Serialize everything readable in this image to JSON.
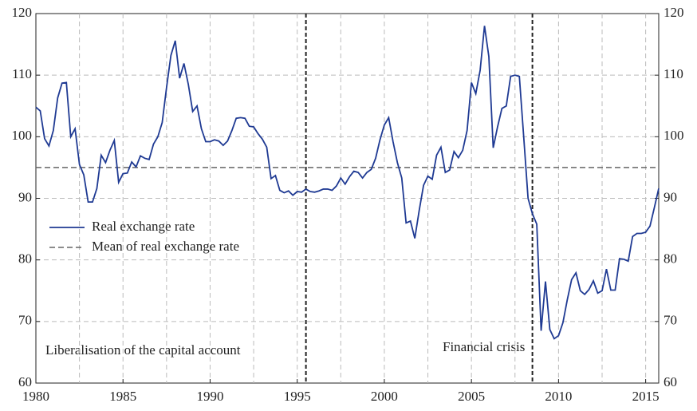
{
  "chart_data": {
    "type": "line",
    "annotations": [
      "Liberalisation of the capital account",
      "Financial crisis"
    ],
    "x": [
      1980,
      1980.25,
      1980.5,
      1980.75,
      1981,
      1981.25,
      1981.5,
      1981.75,
      1982,
      1982.25,
      1982.5,
      1982.75,
      1983,
      1983.25,
      1983.5,
      1983.75,
      1984,
      1984.25,
      1984.5,
      1984.75,
      1985,
      1985.25,
      1985.5,
      1985.75,
      1986,
      1986.25,
      1986.5,
      1986.75,
      1987,
      1987.25,
      1987.5,
      1987.75,
      1988,
      1988.25,
      1988.5,
      1988.75,
      1989,
      1989.25,
      1989.5,
      1989.75,
      1990,
      1990.25,
      1990.5,
      1990.75,
      1991,
      1991.25,
      1991.5,
      1991.75,
      1992,
      1992.25,
      1992.5,
      1992.75,
      1993,
      1993.25,
      1993.5,
      1993.75,
      1994,
      1994.25,
      1994.5,
      1994.75,
      1995,
      1995.25,
      1995.5,
      1995.75,
      1996,
      1996.25,
      1996.5,
      1996.75,
      1997,
      1997.25,
      1997.5,
      1997.75,
      1998,
      1998.25,
      1998.5,
      1998.75,
      1999,
      1999.25,
      1999.5,
      1999.75,
      2000,
      2000.25,
      2000.5,
      2000.75,
      2001,
      2001.25,
      2001.5,
      2001.75,
      2002,
      2002.25,
      2002.5,
      2002.75,
      2003,
      2003.25,
      2003.5,
      2003.75,
      2004,
      2004.25,
      2004.5,
      2004.75,
      2005,
      2005.25,
      2005.5,
      2005.75,
      2006,
      2006.25,
      2006.5,
      2006.75,
      2007,
      2007.25,
      2007.5,
      2007.75,
      2008,
      2008.25,
      2008.5,
      2008.75,
      2009,
      2009.25,
      2009.5,
      2009.75,
      2010,
      2010.25,
      2010.5,
      2010.75,
      2011,
      2011.25,
      2011.5,
      2011.75,
      2012,
      2012.25,
      2012.5,
      2012.75,
      2013,
      2013.25,
      2013.5,
      2013.75,
      2014,
      2014.25,
      2014.5,
      2014.75,
      2015,
      2015.25,
      2015.5,
      2015.75
    ],
    "series": [
      {
        "name": "Real exchange rate",
        "color": "#1f3a93",
        "values": [
          104.8,
          104.2,
          99.7,
          98.5,
          101,
          106.3,
          108.7,
          108.8,
          100,
          101.3,
          95.5,
          93.8,
          89.4,
          89.4,
          91.6,
          97,
          95.8,
          97.8,
          99.4,
          92.6,
          94,
          94.1,
          95.9,
          95.1,
          96.9,
          96.5,
          96.3,
          98.8,
          100,
          102.3,
          108,
          113.2,
          115.6,
          109.5,
          111.9,
          108.5,
          104.1,
          105,
          101.3,
          99.2,
          99.2,
          99.5,
          99.3,
          98.6,
          99.3,
          101,
          103,
          103.1,
          103,
          101.7,
          101.6,
          100.5,
          99.6,
          98.3,
          93.2,
          93.7,
          91.3,
          90.9,
          91.2,
          90.5,
          91.1,
          91,
          91.5,
          91.1,
          91,
          91.2,
          91.5,
          91.5,
          91.3,
          92,
          93.3,
          92.3,
          93.5,
          94.4,
          94.2,
          93.3,
          94.2,
          94.7,
          96.5,
          99.5,
          101.9,
          103.1,
          99.2,
          95.8,
          93.3,
          86,
          86.3,
          83.5,
          88,
          92.1,
          93.6,
          93.1,
          97,
          98.3,
          94.2,
          94.6,
          97.6,
          96.6,
          97.8,
          101,
          108.8,
          107,
          110.8,
          118,
          113,
          98.2,
          101.6,
          104.6,
          105,
          109.8,
          110,
          109.8,
          100,
          90,
          87.5,
          85.8,
          68.5,
          76.5,
          68.7,
          67.2,
          67.7,
          69.8,
          73.5,
          76.8,
          77.9,
          75,
          74.4,
          75.2,
          76.6,
          74.6,
          75,
          78.5,
          75.1,
          75.1,
          80.2,
          80.1,
          79.8,
          83.8,
          84.3,
          84.3,
          84.5,
          85.5,
          88.5,
          91.6
        ]
      }
    ],
    "reference_lines": [
      {
        "name": "Mean of real exchange rate",
        "y": 95,
        "color": "#666666"
      }
    ],
    "event_lines": [
      1995.5,
      2008.5
    ],
    "xlim": [
      1980,
      2015.75
    ],
    "xticks": [
      1980,
      1985,
      1990,
      1995,
      2000,
      2005,
      2010,
      2015
    ],
    "x_gridlines": [
      1982.5,
      1985,
      1987.5,
      1990,
      1992.5,
      1995,
      1997.5,
      2000,
      2002.5,
      2005,
      2007.5,
      2010,
      2012.5,
      2015
    ],
    "ylim": [
      60,
      120
    ],
    "yticks": [
      60,
      70,
      80,
      90,
      100,
      110,
      120
    ],
    "y2lim": [
      60,
      120
    ],
    "y2ticks": [
      60,
      70,
      80,
      90,
      100,
      110,
      120
    ],
    "grid": true
  }
}
